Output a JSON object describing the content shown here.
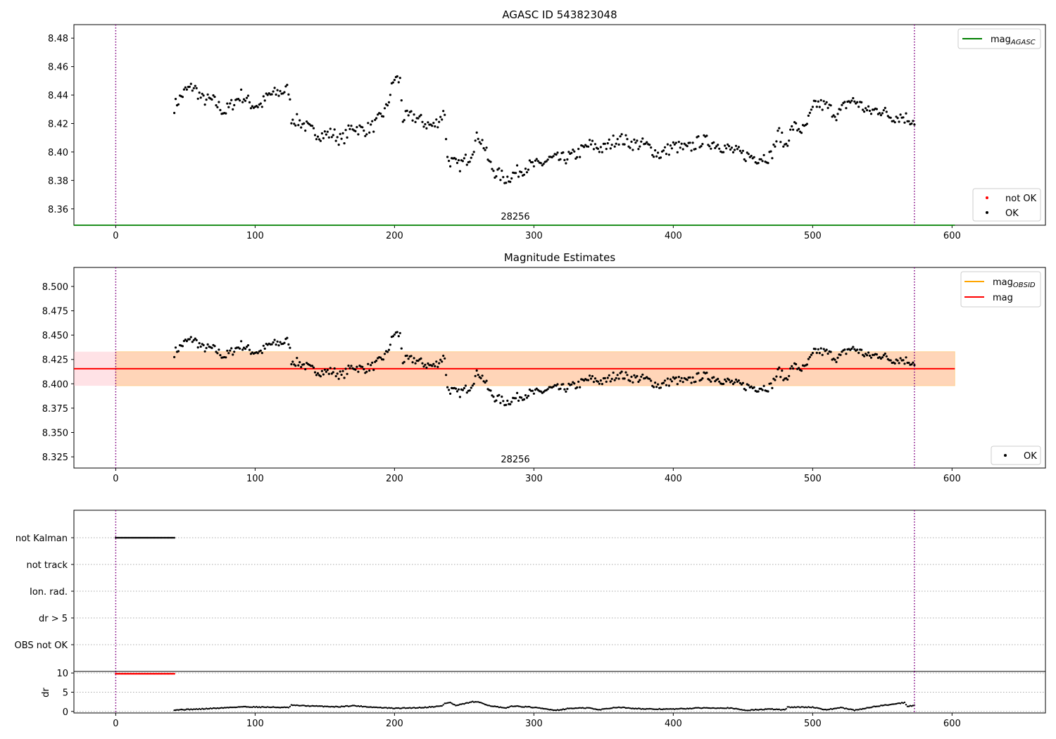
{
  "chart_data": [
    {
      "type": "scatter",
      "title": "AGASC ID 543823048",
      "xlim": [
        -30,
        667
      ],
      "ylim": [
        8.3485,
        8.4895
      ],
      "xticks": [
        "0",
        "100",
        "200",
        "300",
        "400",
        "500",
        "600"
      ],
      "yticks": [
        "8.36",
        "8.38",
        "8.40",
        "8.42",
        "8.44",
        "8.46",
        "8.48"
      ],
      "annotation": "28256",
      "hline": {
        "name": "mag",
        "name_sub": "AGASC",
        "value": 8.3485,
        "color": "#008000"
      },
      "vlines": [
        0,
        573
      ],
      "legends": [
        {
          "placement": "top-right",
          "entries": [
            {
              "label": "mag",
              "sub": "AGASC",
              "kind": "line",
              "color": "#008000"
            }
          ]
        },
        {
          "placement": "bottom-right",
          "entries": [
            {
              "label": "not OK",
              "kind": "dot",
              "color": "#ff0000"
            },
            {
              "label": "OK",
              "kind": "dot",
              "color": "#000000"
            }
          ]
        }
      ],
      "series": [
        {
          "name": "OK",
          "color": "#000000",
          "x_start": 42,
          "x_end": 573,
          "knots": [
            [
              42,
              8.432
            ],
            [
              50,
              8.443
            ],
            [
              56,
              8.446
            ],
            [
              62,
              8.437
            ],
            [
              70,
              8.436
            ],
            [
              78,
              8.428
            ],
            [
              84,
              8.434
            ],
            [
              90,
              8.44
            ],
            [
              98,
              8.433
            ],
            [
              104,
              8.433
            ],
            [
              110,
              8.44
            ],
            [
              118,
              8.442
            ],
            [
              124,
              8.444
            ],
            [
              126,
              8.424
            ],
            [
              134,
              8.42
            ],
            [
              140,
              8.415
            ],
            [
              148,
              8.412
            ],
            [
              156,
              8.413
            ],
            [
              162,
              8.408
            ],
            [
              170,
              8.418
            ],
            [
              178,
              8.415
            ],
            [
              186,
              8.419
            ],
            [
              194,
              8.43
            ],
            [
              200,
              8.452
            ],
            [
              204,
              8.45
            ],
            [
              206,
              8.424
            ],
            [
              214,
              8.425
            ],
            [
              222,
              8.42
            ],
            [
              228,
              8.418
            ],
            [
              236,
              8.428
            ],
            [
              238,
              8.395
            ],
            [
              246,
              8.39
            ],
            [
              254,
              8.397
            ],
            [
              260,
              8.412
            ],
            [
              264,
              8.405
            ],
            [
              268,
              8.392
            ],
            [
              272,
              8.386
            ],
            [
              280,
              8.381
            ],
            [
              288,
              8.386
            ],
            [
              296,
              8.39
            ],
            [
              304,
              8.391
            ],
            [
              312,
              8.395
            ],
            [
              320,
              8.395
            ],
            [
              330,
              8.398
            ],
            [
              340,
              8.405
            ],
            [
              350,
              8.402
            ],
            [
              360,
              8.41
            ],
            [
              370,
              8.406
            ],
            [
              380,
              8.405
            ],
            [
              390,
              8.398
            ],
            [
              400,
              8.404
            ],
            [
              410,
              8.402
            ],
            [
              420,
              8.408
            ],
            [
              430,
              8.406
            ],
            [
              440,
              8.402
            ],
            [
              450,
              8.398
            ],
            [
              460,
              8.396
            ],
            [
              470,
              8.397
            ],
            [
              476,
              8.414
            ],
            [
              480,
              8.404
            ],
            [
              486,
              8.418
            ],
            [
              494,
              8.415
            ],
            [
              502,
              8.434
            ],
            [
              510,
              8.432
            ],
            [
              518,
              8.426
            ],
            [
              526,
              8.436
            ],
            [
              532,
              8.435
            ],
            [
              540,
              8.428
            ],
            [
              548,
              8.43
            ],
            [
              556,
              8.425
            ],
            [
              564,
              8.425
            ],
            [
              573,
              8.422
            ]
          ],
          "noise": 0.0046,
          "step": 1.0
        }
      ]
    },
    {
      "type": "scatter",
      "title": "Magnitude Estimates",
      "xlim": [
        -30,
        667
      ],
      "ylim": [
        8.3135,
        8.5195
      ],
      "xticks": [
        "0",
        "100",
        "200",
        "300",
        "400",
        "500",
        "600"
      ],
      "yticks": [
        "8.325",
        "8.350",
        "8.375",
        "8.400",
        "8.425",
        "8.450",
        "8.475",
        "8.500"
      ],
      "annotation": "28256",
      "hline": {
        "name": "mag",
        "value": 8.4155,
        "color": "#ff0000"
      },
      "band_pink": {
        "x": [
          -30,
          602
        ],
        "y": [
          8.398,
          8.433
        ],
        "color": "#ffb6c1"
      },
      "band_orange": {
        "x": [
          0,
          602
        ],
        "y": [
          8.398,
          8.433
        ],
        "color": "#ffa500"
      },
      "vlines": [
        0,
        573
      ],
      "legends": [
        {
          "placement": "top-right",
          "entries": [
            {
              "label": "mag",
              "sub": "OBSID",
              "kind": "line",
              "color": "#ffa500"
            },
            {
              "label": "mag",
              "kind": "line",
              "color": "#ff0000"
            }
          ]
        },
        {
          "placement": "bottom-right",
          "entries": [
            {
              "label": "OK",
              "kind": "dot",
              "color": "#000000"
            }
          ]
        }
      ],
      "series": [
        {
          "name": "OK",
          "color": "#000000",
          "x_start": 42,
          "x_end": 573,
          "same_as_panel": 0
        }
      ]
    },
    {
      "type": "scatter",
      "title": "",
      "xlim": [
        -30,
        667
      ],
      "flags": [
        "not Kalman",
        "not track",
        "Ion. rad.",
        "dr > 5",
        "OBS not OK"
      ],
      "flag_segments": [
        {
          "flag": "not Kalman",
          "x": [
            0,
            42
          ],
          "color": "#000000"
        }
      ],
      "vlines": [
        0,
        573
      ]
    },
    {
      "type": "scatter",
      "title": "",
      "ylabel": "dr",
      "xlim": [
        -30,
        667
      ],
      "ylim": [
        -0.4,
        10.4
      ],
      "xticks": [
        "0",
        "100",
        "200",
        "300",
        "400",
        "500",
        "600"
      ],
      "yticks": [
        "0",
        "5",
        "10"
      ],
      "vlines": [
        0,
        573
      ],
      "series": [
        {
          "name": "dr not OK",
          "color": "#ff0000",
          "x_start": 0,
          "x_end": 42,
          "constant": 9.8
        },
        {
          "name": "dr",
          "color": "#000000",
          "x_start": 42,
          "x_end": 573,
          "knots": [
            [
              42,
              0.4
            ],
            [
              60,
              0.6
            ],
            [
              76,
              0.9
            ],
            [
              90,
              1.2
            ],
            [
              110,
              1.1
            ],
            [
              124,
              1.0
            ],
            [
              126,
              1.6
            ],
            [
              140,
              1.4
            ],
            [
              160,
              1.2
            ],
            [
              170,
              1.5
            ],
            [
              184,
              1.1
            ],
            [
              200,
              0.8
            ],
            [
              220,
              1.0
            ],
            [
              234,
              1.4
            ],
            [
              236,
              2.1
            ],
            [
              240,
              2.3
            ],
            [
              244,
              1.5
            ],
            [
              256,
              2.5
            ],
            [
              262,
              2.3
            ],
            [
              268,
              1.5
            ],
            [
              280,
              0.8
            ],
            [
              284,
              1.4
            ],
            [
              298,
              1.1
            ],
            [
              316,
              0.3
            ],
            [
              326,
              0.8
            ],
            [
              340,
              0.9
            ],
            [
              346,
              0.4
            ],
            [
              360,
              1.1
            ],
            [
              380,
              0.6
            ],
            [
              400,
              0.6
            ],
            [
              420,
              0.9
            ],
            [
              440,
              0.9
            ],
            [
              452,
              0.3
            ],
            [
              470,
              0.6
            ],
            [
              480,
              0.4
            ],
            [
              482,
              1.1
            ],
            [
              500,
              1.1
            ],
            [
              510,
              0.4
            ],
            [
              520,
              1.0
            ],
            [
              530,
              0.3
            ],
            [
              545,
              1.3
            ],
            [
              560,
              2.0
            ],
            [
              566,
              2.3
            ],
            [
              568,
              1.3
            ],
            [
              573,
              1.6
            ]
          ]
        }
      ]
    }
  ]
}
